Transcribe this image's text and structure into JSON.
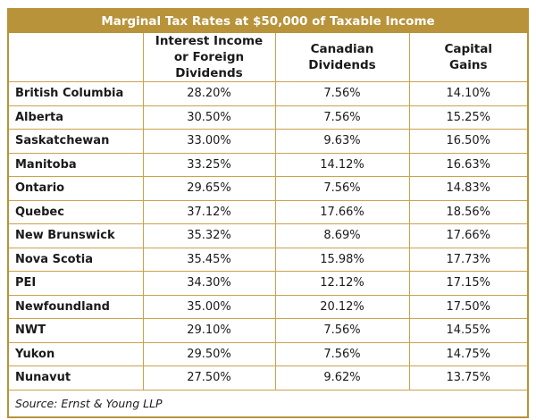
{
  "table": {
    "title": "Marginal Tax Rates at $50,000 of Taxable Income",
    "headers": [
      [
        "",
        ""
      ],
      [
        "Interest Income",
        "or Foreign Dividends"
      ],
      [
        "Canadian",
        "Dividends"
      ],
      [
        "Capital",
        "Gains"
      ]
    ],
    "rows": [
      [
        "British Columbia",
        "28.20%",
        "7.56%",
        "14.10%"
      ],
      [
        "Alberta",
        "30.50%",
        "7.56%",
        "15.25%"
      ],
      [
        "Saskatchewan",
        "33.00%",
        "9.63%",
        "16.50%"
      ],
      [
        "Manitoba",
        "33.25%",
        "14.12%",
        "16.63%"
      ],
      [
        "Ontario",
        "29.65%",
        "7.56%",
        "14.83%"
      ],
      [
        "Quebec",
        "37.12%",
        "17.66%",
        "18.56%"
      ],
      [
        "New Brunswick",
        "35.32%",
        "8.69%",
        "17.66%"
      ],
      [
        "Nova Scotia",
        "35.45%",
        "15.98%",
        "17.73%"
      ],
      [
        "PEI",
        "34.30%",
        "12.12%",
        "17.15%"
      ],
      [
        "Newfoundland",
        "35.00%",
        "20.12%",
        "17.50%"
      ],
      [
        "NWT",
        "29.10%",
        "7.56%",
        "14.55%"
      ],
      [
        "Yukon",
        "29.50%",
        "7.56%",
        "14.75%"
      ],
      [
        "Nunavut",
        "27.50%",
        "9.62%",
        "13.75%"
      ]
    ],
    "source": "Source: Ernst & Young LLP"
  },
  "colors": {
    "header_band": "#b8933a",
    "grid_lines": "#c9a24c"
  }
}
